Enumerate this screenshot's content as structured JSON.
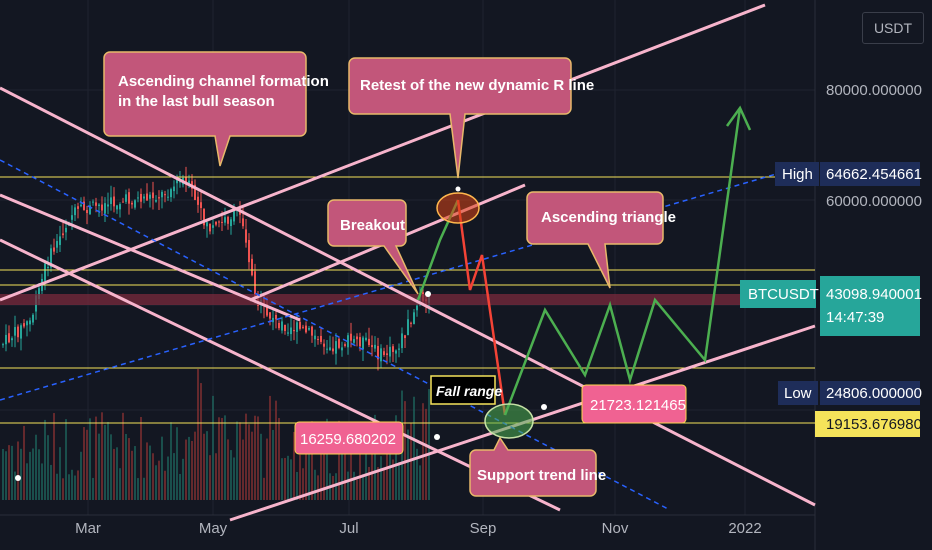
{
  "currency_button": "USDT",
  "chart_data": {
    "type": "candlestick",
    "symbol": "BTCUSDT",
    "x_ticks": [
      "Mar",
      "May",
      "Jul",
      "Sep",
      "Nov",
      "2022"
    ],
    "y_ticks": [
      "80000.000000",
      "60000.000000"
    ],
    "price_tags": [
      {
        "label": "High",
        "value": "64662.454661",
        "color": "#1e2d59",
        "text_color": "#ffffff",
        "label_color": "#1e2d59"
      },
      {
        "label": "BTCUSDT",
        "value": "43098.940001",
        "sub": "14:47:39",
        "color": "#26a69a",
        "text_color": "#ffffff",
        "label_color": "#26a69a"
      },
      {
        "label": "Low",
        "value": "24806.000000",
        "color": "#1e2d59",
        "text_color": "#ffffff",
        "label_color": "#1e2d59"
      },
      {
        "label": "",
        "value": "19153.676980",
        "color": "#f5e35a",
        "text_color": "#131722",
        "label_color": ""
      }
    ],
    "annotations": [
      {
        "text": [
          "Ascending channel formation",
          "in the last bull season"
        ],
        "style": "callout"
      },
      {
        "text": [
          "Retest of the new dynamic R line"
        ],
        "style": "callout"
      },
      {
        "text": [
          "Breakout"
        ],
        "style": "callout"
      },
      {
        "text": [
          "Ascending triangle"
        ],
        "style": "callout"
      },
      {
        "text": [
          "Support trend line"
        ],
        "style": "callout"
      },
      {
        "text": [
          "Fall range"
        ],
        "style": "box"
      },
      {
        "text": [
          "16259.680202"
        ],
        "style": "price-label"
      },
      {
        "text": [
          "21723.121465"
        ],
        "style": "price-label"
      }
    ],
    "colors": {
      "background": "#131722",
      "up": "#26a69a",
      "down": "#ef5350",
      "channel": "#f7a8c4",
      "horizontal": "#f5e35a",
      "dashed": "#2962ff",
      "projection_up": "#4caf50",
      "projection_down": "#f44336",
      "callout": "#c2567a"
    }
  }
}
